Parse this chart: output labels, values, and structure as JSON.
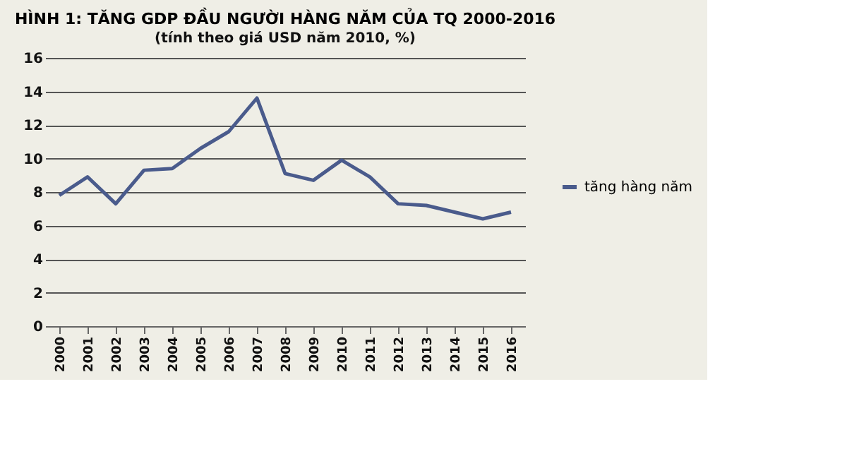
{
  "chart_data": {
    "type": "line",
    "title": "HÌNH 1: TĂNG GDP ĐẦU NGƯỜI HÀNG NĂM CỦA TQ 2000-2016",
    "subtitle": "(tính theo giá USD năm 2010, %)",
    "categories": [
      "2000",
      "2001",
      "2002",
      "2003",
      "2004",
      "2005",
      "2006",
      "2007",
      "2008",
      "2009",
      "2010",
      "2011",
      "2012",
      "2013",
      "2014",
      "2015",
      "2016"
    ],
    "series": [
      {
        "name": "tăng hàng năm",
        "color": "#4a5b8c",
        "values": [
          7.8,
          8.9,
          7.3,
          9.3,
          9.4,
          10.6,
          11.6,
          13.6,
          9.1,
          8.7,
          9.9,
          8.9,
          7.3,
          7.2,
          6.8,
          6.4,
          6.8
        ]
      }
    ],
    "ylim": [
      0,
      16
    ],
    "yticks": [
      0,
      2,
      4,
      6,
      8,
      10,
      12,
      14,
      16
    ],
    "grid": "y",
    "legend": "right",
    "marker": "none",
    "line_style": "solid"
  }
}
